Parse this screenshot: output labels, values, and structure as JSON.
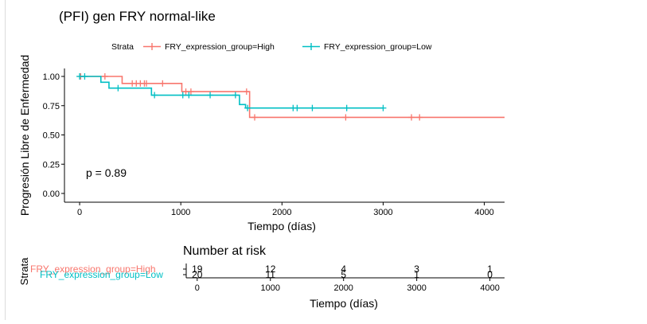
{
  "chart_data": [
    {
      "type": "line",
      "step": true,
      "title": "(PFI) gen FRY normal-like",
      "xlabel": "Tiempo (días)",
      "ylabel": "Progresión Libre de Enfermedad",
      "xlim": [
        -150,
        4200
      ],
      "ylim": [
        0,
        1
      ],
      "x_ticks": [
        0,
        1000,
        2000,
        3000,
        4000
      ],
      "y_ticks": [
        0.0,
        0.25,
        0.5,
        0.75,
        1.0
      ],
      "y_tick_labels": [
        "0.00",
        "0.25",
        "0.50",
        "0.75",
        "1.00"
      ],
      "legend_title": "Strata",
      "legend_position": "top",
      "annotation": "p = 0.89",
      "grid": false,
      "series": [
        {
          "name": "FRY_expression_group=High",
          "color": "#F8766D",
          "steps": [
            [
              0,
              1.0
            ],
            [
              420,
              0.94
            ],
            [
              1010,
              0.87
            ],
            [
              1680,
              0.65
            ],
            [
              4200,
              0.65
            ]
          ],
          "censored": [
            [
              10,
              1.0
            ],
            [
              250,
              1.0
            ],
            [
              520,
              0.94
            ],
            [
              560,
              0.94
            ],
            [
              600,
              0.94
            ],
            [
              640,
              0.94
            ],
            [
              660,
              0.94
            ],
            [
              820,
              0.94
            ],
            [
              1050,
              0.87
            ],
            [
              1100,
              0.87
            ],
            [
              1650,
              0.87
            ],
            [
              1730,
              0.65
            ],
            [
              2630,
              0.65
            ],
            [
              3280,
              0.65
            ],
            [
              3360,
              0.65
            ]
          ]
        },
        {
          "name": "FRY_expression_group=Low",
          "color": "#00BFC4",
          "steps": [
            [
              0,
              1.0
            ],
            [
              210,
              0.95
            ],
            [
              290,
              0.9
            ],
            [
              710,
              0.84
            ],
            [
              1580,
              0.76
            ],
            [
              1640,
              0.73
            ],
            [
              3000,
              0.73
            ]
          ],
          "censored": [
            [
              0,
              1.0
            ],
            [
              50,
              1.0
            ],
            [
              380,
              0.9
            ],
            [
              740,
              0.84
            ],
            [
              1020,
              0.84
            ],
            [
              1080,
              0.84
            ],
            [
              1290,
              0.84
            ],
            [
              1540,
              0.84
            ],
            [
              1660,
              0.73
            ],
            [
              2110,
              0.73
            ],
            [
              2150,
              0.73
            ],
            [
              2300,
              0.73
            ],
            [
              2640,
              0.73
            ],
            [
              3000,
              0.73
            ]
          ]
        }
      ]
    },
    {
      "type": "table",
      "title": "Number at risk",
      "xlabel": "Tiempo (días)",
      "ylabel": "Strata",
      "xlim": [
        -150,
        4200
      ],
      "x_ticks": [
        0,
        1000,
        2000,
        3000,
        4000
      ],
      "time_points": [
        0,
        1000,
        2000,
        3000,
        4000
      ],
      "rows": [
        {
          "name": "FRY_expression_group=High",
          "color": "#F8766D",
          "values": [
            19,
            12,
            4,
            3,
            1
          ]
        },
        {
          "name": "FRY_expression_group=Low",
          "color": "#00BFC4",
          "values": [
            20,
            11,
            5,
            1,
            0
          ]
        }
      ]
    }
  ]
}
